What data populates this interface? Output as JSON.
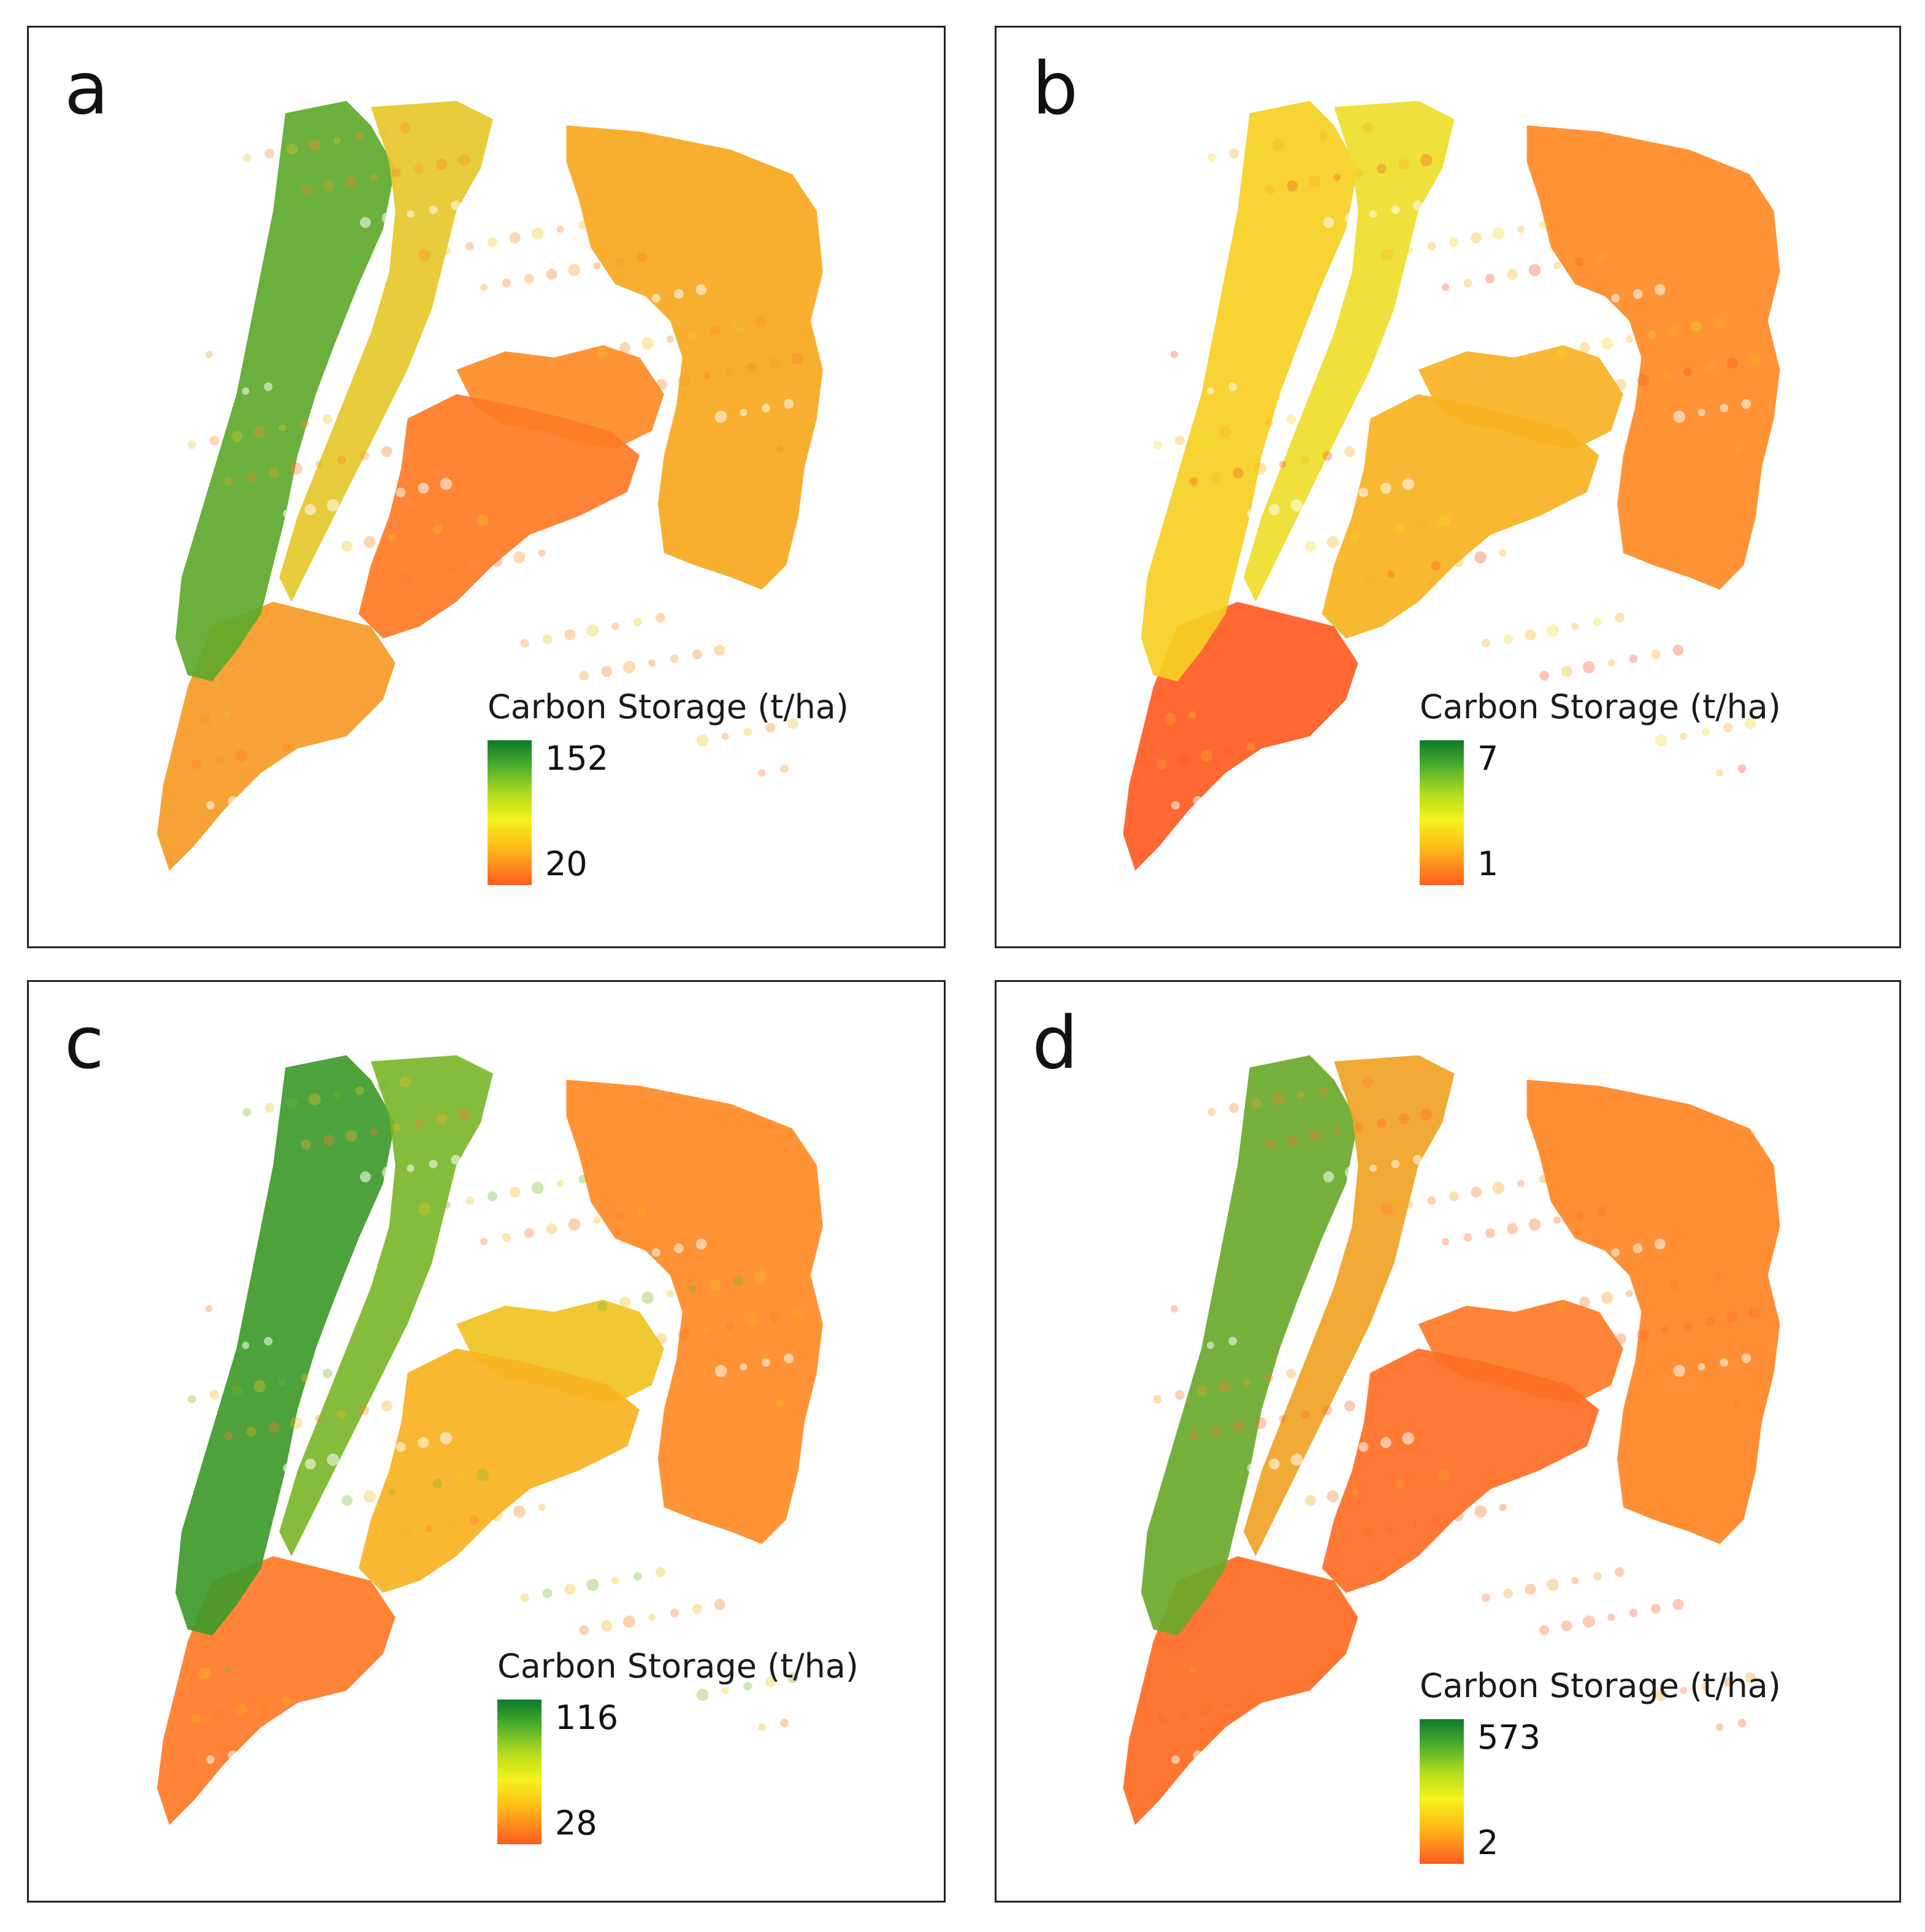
{
  "panels": [
    {
      "letter": "a",
      "legend": {
        "title": "Carbon Storage (t/ha)",
        "max": "152",
        "min": "20"
      },
      "colors": {
        "west": "#5ea92c",
        "westAlt": "#e6c82a",
        "mid": "#ff7a24",
        "east": "#f7a81e",
        "lobe": "#ff8a26",
        "south": "#f59a25"
      }
    },
    {
      "letter": "b",
      "legend": {
        "title": "Carbon Storage (t/ha)",
        "max": "7",
        "min": "1"
      },
      "colors": {
        "west": "#f6cf22",
        "westAlt": "#eedd2a",
        "mid": "#f8b21f",
        "east": "#ff8a24",
        "lobe": "#f8b222",
        "south": "#ff5a22"
      }
    },
    {
      "letter": "c",
      "legend": {
        "title": "Carbon Storage (t/ha)",
        "max": "116",
        "min": "28"
      },
      "colors": {
        "west": "#3f9a2b",
        "westAlt": "#7cb62a",
        "mid": "#f8b21f",
        "east": "#ff8a24",
        "lobe": "#f0c222",
        "south": "#ff7a26"
      }
    },
    {
      "letter": "d",
      "legend": {
        "title": "Carbon Storage (t/ha)",
        "max": "573",
        "min": "2"
      },
      "colors": {
        "west": "#6aa92b",
        "westAlt": "#f0a324",
        "mid": "#ff6e24",
        "east": "#ff8424",
        "lobe": "#ff7a26",
        "south": "#ff6a22"
      }
    }
  ]
}
